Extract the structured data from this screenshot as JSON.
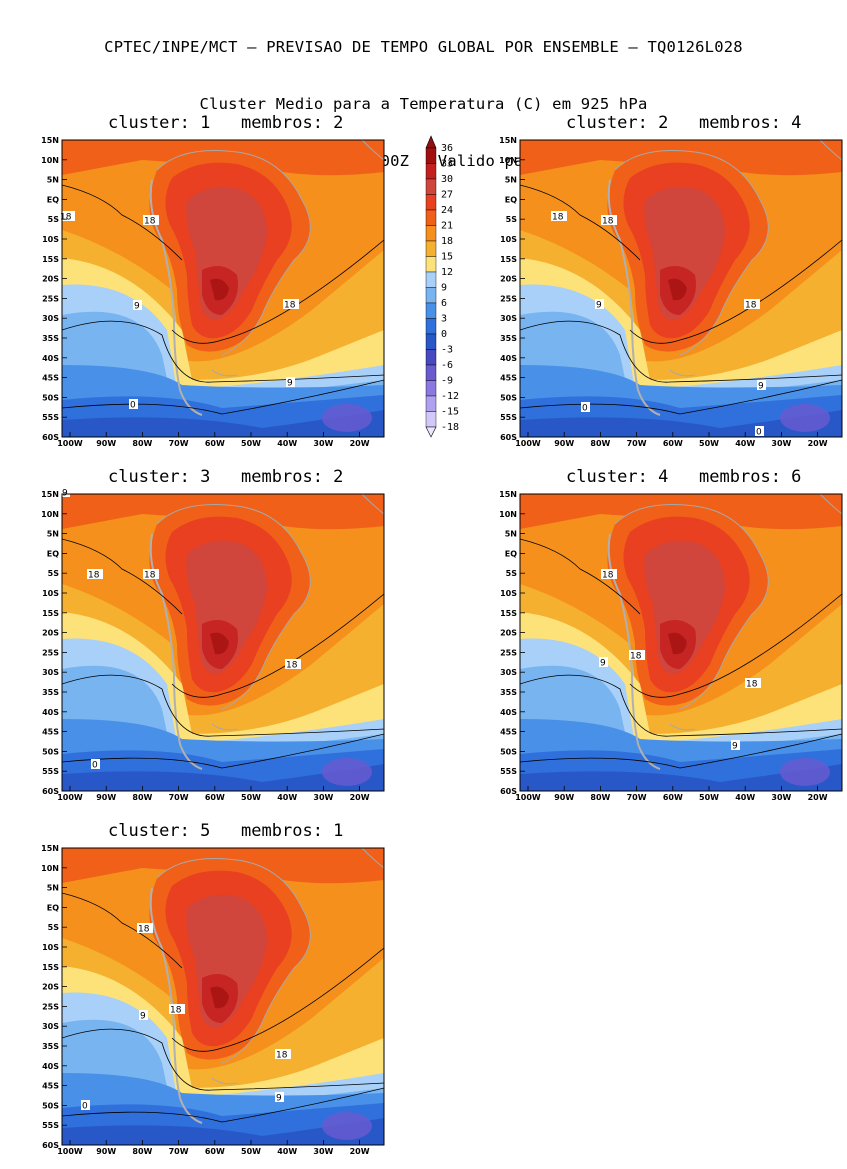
{
  "header": {
    "line1": "CPTEC/INPE/MCT – PREVISAO DE TEMPO GLOBAL POR ENSEMBLE – TQ0126L028",
    "line2": "Cluster Medio para a Temperatura (C) em 925 hPa",
    "line3": "Previsao de: 2020120600Z   Valido para: 2020121200Z"
  },
  "axes": {
    "lat_labels": [
      "15N",
      "10N",
      "5N",
      "EQ",
      "5S",
      "10S",
      "15S",
      "20S",
      "25S",
      "30S",
      "35S",
      "40S",
      "45S",
      "50S",
      "55S",
      "60S"
    ],
    "lon_labels": [
      "100W",
      "90W",
      "80W",
      "70W",
      "60W",
      "50W",
      "40W",
      "30W",
      "20W"
    ]
  },
  "colorbar": {
    "labels": [
      "36",
      "33",
      "30",
      "27",
      "24",
      "21",
      "18",
      "15",
      "12",
      "9",
      "6",
      "3",
      "0",
      "-3",
      "-6",
      "-9",
      "-12",
      "-15",
      "-18"
    ],
    "colors": [
      "#a01010",
      "#c42020",
      "#d0453c",
      "#e84020",
      "#f06018",
      "#f5901c",
      "#f5b030",
      "#fde27a",
      "#a8d0f8",
      "#78b4f0",
      "#4890e8",
      "#3070dc",
      "#2858c8",
      "#4848c0",
      "#6a5ad0",
      "#8c78e0",
      "#b0a0f0",
      "#d4c8fa"
    ]
  },
  "clusters": [
    {
      "title": "cluster: 1   membros: 2",
      "contour_labels": [
        {
          "text": "18"
        },
        {
          "text": "18"
        },
        {
          "text": "9"
        },
        {
          "text": "18"
        },
        {
          "text": "9"
        },
        {
          "text": "0"
        }
      ]
    },
    {
      "title": "cluster: 2   membros: 4",
      "contour_labels": [
        {
          "text": "18"
        },
        {
          "text": "18"
        },
        {
          "text": "9"
        },
        {
          "text": "18"
        },
        {
          "text": "9"
        },
        {
          "text": "0"
        },
        {
          "text": "0"
        }
      ]
    },
    {
      "title": "cluster: 3   membros: 2",
      "contour_labels": [
        {
          "text": "18"
        },
        {
          "text": "18"
        },
        {
          "text": "18"
        },
        {
          "text": "9"
        },
        {
          "text": "0"
        }
      ]
    },
    {
      "title": "cluster: 4   membros: 6",
      "contour_labels": [
        {
          "text": "18"
        },
        {
          "text": "18"
        },
        {
          "text": "9"
        },
        {
          "text": "18"
        },
        {
          "text": "9"
        }
      ]
    },
    {
      "title": "cluster: 5   membros: 1",
      "contour_labels": [
        {
          "text": "18"
        },
        {
          "text": "18"
        },
        {
          "text": "9"
        },
        {
          "text": "18"
        },
        {
          "text": "9"
        },
        {
          "text": "0"
        }
      ]
    }
  ]
}
